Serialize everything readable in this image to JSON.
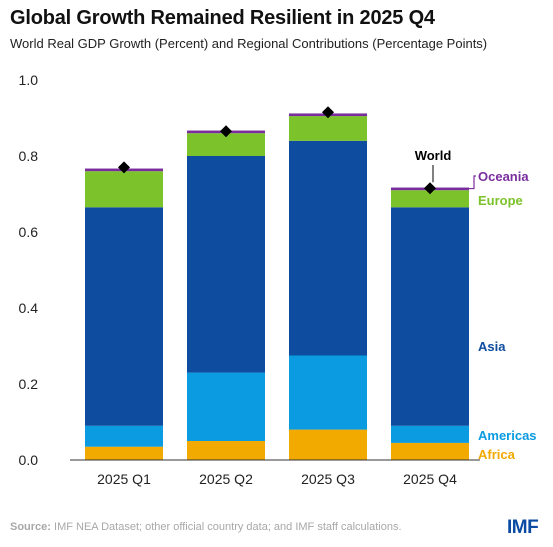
{
  "title": "Global Growth Remained Resilient in 2025 Q4",
  "subtitle": "World Real GDP Growth (Percent) and Regional Contributions (Percentage Points)",
  "source_label": "Source:",
  "source_text": "IMF NEA Dataset; other official country data; and IMF staff calculations.",
  "logo": "IMF",
  "chart_data": {
    "type": "bar",
    "stacked": true,
    "categories": [
      "2025 Q1",
      "2025 Q2",
      "2025 Q3",
      "2025 Q4"
    ],
    "ylim": [
      0,
      1.0
    ],
    "yticks": [
      "0.0",
      "0.2",
      "0.4",
      "0.6",
      "0.8",
      "1.0"
    ],
    "ytick_values": [
      0,
      0.2,
      0.4,
      0.6,
      0.8,
      1.0
    ],
    "grid": false,
    "series": [
      {
        "name": "Africa",
        "color": "#f2a900",
        "values": [
          0.035,
          0.05,
          0.08,
          0.045
        ]
      },
      {
        "name": "Americas",
        "color": "#0a9be0",
        "values": [
          0.055,
          0.18,
          0.195,
          0.045
        ]
      },
      {
        "name": "Asia",
        "color": "#0d4c9e",
        "values": [
          0.575,
          0.57,
          0.565,
          0.575
        ]
      },
      {
        "name": "Europe",
        "color": "#7cc22a",
        "values": [
          0.095,
          0.06,
          0.065,
          0.045
        ]
      },
      {
        "name": "Oceania",
        "color": "#7a2e9e",
        "values": [
          0.007,
          0.007,
          0.007,
          0.007
        ]
      }
    ],
    "world": {
      "name": "World",
      "values": [
        0.77,
        0.865,
        0.915,
        0.715
      ]
    },
    "legend_placement": "right, labels beside last bar"
  }
}
